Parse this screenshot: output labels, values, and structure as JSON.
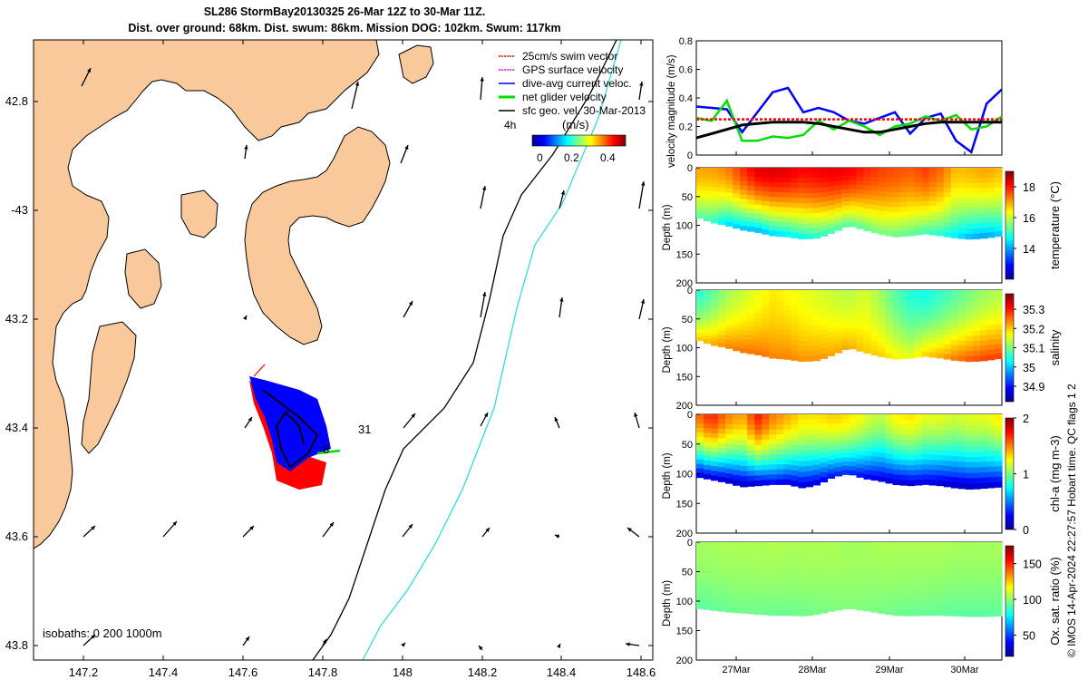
{
  "header": {
    "title_line1": "SL286 StormBay20130325 26-Mar 12Z to 30-Mar 11Z.",
    "title_line2": "Dist. over ground: 68km. Dist. swum: 86km. Mission DOG: 102km. Swum: 117km"
  },
  "legend": {
    "items": [
      {
        "label": "25cm/s swim vector",
        "color": "#ff0000"
      },
      {
        "label": "GPS surface velocity",
        "color": "#ff00ff"
      },
      {
        "label": "dive-avg current veloc.",
        "color": "#0000ff"
      },
      {
        "label": "net glider velocity",
        "color": "#00dd00"
      },
      {
        "label": "sfc geo. vel. 30-Mar-2013",
        "color": "#000000"
      }
    ],
    "colorbar_label": "(m/s)",
    "colorbar_ticks": [
      "0",
      "0.2",
      "0.4"
    ],
    "time_marker": "4h"
  },
  "map": {
    "lat_ticks": [
      "42.8",
      "-43",
      "43.2",
      "43.4",
      "43.6",
      "43.8"
    ],
    "lon_ticks": [
      "147.2",
      "147.4",
      "147.6",
      "147.8",
      "148",
      "148.2",
      "148.4",
      "148.6"
    ],
    "isobaths_label": "isobaths: 0   200  1000m",
    "track_labels": [
      "31",
      "8"
    ],
    "colors": {
      "land": "#f9c89b",
      "sea": "#ffffff",
      "isobath_200": "#000000",
      "isobath_1000": "#33dddd"
    }
  },
  "chart_data": [
    {
      "type": "line",
      "title": "",
      "ylabel": "velocity magnitude (m/s)",
      "ylim": [
        0,
        0.8
      ],
      "yticks": [
        "0",
        "0.2",
        "0.4",
        "0.6",
        "0.8"
      ],
      "x": [
        0,
        0.05,
        0.1,
        0.15,
        0.2,
        0.25,
        0.3,
        0.35,
        0.4,
        0.45,
        0.5,
        0.55,
        0.6,
        0.65,
        0.7,
        0.75,
        0.8,
        0.85,
        0.9,
        0.95,
        1.0
      ],
      "series": [
        {
          "name": "dive-avg current veloc.",
          "color": "#0000ff",
          "values": [
            0.34,
            0.33,
            0.32,
            0.16,
            0.3,
            0.44,
            0.47,
            0.3,
            0.33,
            0.3,
            0.24,
            0.22,
            0.26,
            0.3,
            0.15,
            0.26,
            0.29,
            0.1,
            0.02,
            0.36,
            0.46
          ]
        },
        {
          "name": "net glider velocity",
          "color": "#00dd00",
          "values": [
            0.26,
            0.24,
            0.38,
            0.1,
            0.1,
            0.13,
            0.12,
            0.14,
            0.24,
            0.18,
            0.24,
            0.2,
            0.14,
            0.2,
            0.22,
            0.27,
            0.24,
            0.28,
            0.18,
            0.2,
            0.27
          ]
        },
        {
          "name": "25cm/s swim vector",
          "color": "#ff0000",
          "values": [
            0.25,
            0.25,
            0.25,
            0.25,
            0.25,
            0.25,
            0.25,
            0.25,
            0.25,
            0.25,
            0.25,
            0.25,
            0.25,
            0.25,
            0.25,
            0.25,
            0.25,
            0.25,
            0.25,
            0.25,
            0.25
          ]
        },
        {
          "name": "sfc geo. vel. 30-Mar-2013",
          "color": "#000000",
          "values": [
            0.12,
            0.15,
            0.18,
            0.21,
            0.22,
            0.23,
            0.23,
            0.23,
            0.22,
            0.2,
            0.18,
            0.16,
            0.16,
            0.18,
            0.2,
            0.22,
            0.23,
            0.23,
            0.23,
            0.23,
            0.23
          ]
        }
      ]
    },
    {
      "type": "heatmap",
      "ylabel": "Depth (m)",
      "yticks": [
        "0",
        "50",
        "100",
        "150",
        "200"
      ],
      "ylim": [
        200,
        0
      ],
      "cbar_label": "temperature (°C)",
      "cbar_ticks": [
        "14",
        "16",
        "18"
      ],
      "cbar_range": [
        12,
        19
      ],
      "bottom_depth": [
        85,
        95,
        100,
        108,
        112,
        118,
        120,
        124,
        122,
        112,
        100,
        108,
        115,
        120,
        118,
        115,
        118,
        122,
        124,
        122,
        118
      ],
      "surface_values": [
        17,
        17,
        17.2,
        17.8,
        18.3,
        18.4,
        18.3,
        18.1,
        18.2,
        18.3,
        18.2,
        17.9,
        17.7,
        17.6,
        17.5,
        17.7,
        17.4,
        16.8,
        16.9,
        17.0,
        16.8
      ],
      "bottom_values": [
        15.2,
        15.0,
        14.3,
        14.1,
        14.0,
        14.2,
        14.4,
        14.6,
        14.8,
        15.0,
        15.1,
        15.2,
        15.4,
        15.3,
        15.2,
        15.0,
        14.8,
        14.4,
        14.0,
        13.9,
        14.2
      ]
    },
    {
      "type": "heatmap",
      "ylabel": "Depth (m)",
      "yticks": [
        "0",
        "50",
        "100",
        "150",
        "200"
      ],
      "ylim": [
        200,
        0
      ],
      "cbar_label": "salinity",
      "cbar_ticks": [
        "34.9",
        "35",
        "35.1",
        "35.2",
        "35.3"
      ],
      "cbar_range": [
        34.82,
        35.38
      ],
      "bottom_depth": [
        85,
        95,
        100,
        108,
        112,
        118,
        120,
        124,
        122,
        112,
        100,
        108,
        115,
        120,
        118,
        115,
        118,
        122,
        124,
        122,
        118
      ],
      "surface_values": [
        35.05,
        35.08,
        35.12,
        35.14,
        35.16,
        35.18,
        35.17,
        35.16,
        35.15,
        35.14,
        35.13,
        35.15,
        35.12,
        35.08,
        35.05,
        35.04,
        35.06,
        35.08,
        35.1,
        35.12,
        35.13
      ],
      "bottom_values": [
        35.2,
        35.22,
        35.24,
        35.25,
        35.25,
        35.24,
        35.24,
        35.23,
        35.23,
        35.22,
        35.22,
        35.2,
        35.2,
        35.18,
        35.16,
        35.2,
        35.22,
        35.25,
        35.27,
        35.28,
        35.28
      ]
    },
    {
      "type": "heatmap",
      "ylabel": "Depth (m)",
      "yticks": [
        "0",
        "50",
        "100",
        "150",
        "200"
      ],
      "ylim": [
        200,
        0
      ],
      "cbar_label": "chl-a (mg m-3)",
      "cbar_ticks": [
        "0",
        "1",
        "2"
      ],
      "cbar_range": [
        0,
        2
      ],
      "bottom_depth": [
        105,
        110,
        115,
        122,
        120,
        118,
        118,
        124,
        118,
        105,
        100,
        108,
        112,
        118,
        120,
        118,
        120,
        124,
        126,
        124,
        122
      ],
      "surface_values": [
        1.5,
        1.7,
        1.5,
        1.4,
        1.7,
        1.5,
        1.4,
        1.3,
        1.3,
        1.35,
        1.3,
        1.2,
        1.1,
        1.25,
        1.3,
        1.2,
        1.2,
        1.15,
        1.2,
        1.2,
        1.3
      ],
      "bottom_values": [
        0.1,
        0.1,
        0.08,
        0.06,
        0.1,
        0.2,
        0.15,
        0.12,
        0.15,
        0.25,
        0.3,
        0.2,
        0.15,
        0.1,
        0.12,
        0.15,
        0.1,
        0.08,
        0.08,
        0.1,
        0.12
      ]
    },
    {
      "type": "heatmap",
      "ylabel": "Depth (m)",
      "yticks": [
        "0",
        "50",
        "100",
        "150",
        "200"
      ],
      "ylim": [
        200,
        0
      ],
      "cbar_label": "Ox. sat. ratio (%)",
      "cbar_ticks": [
        "50",
        "100",
        "150"
      ],
      "cbar_range": [
        20,
        175
      ],
      "bottom_depth": [
        112,
        115,
        118,
        120,
        122,
        124,
        124,
        125,
        122,
        116,
        112,
        116,
        120,
        124,
        125,
        124,
        124,
        125,
        126,
        126,
        125
      ],
      "surface_values": [
        103,
        103,
        104,
        104,
        104,
        105,
        104,
        104,
        104,
        104,
        103,
        103,
        104,
        104,
        104,
        104,
        104,
        103,
        103,
        103,
        103
      ],
      "bottom_values": [
        92,
        93,
        94,
        95,
        95,
        94,
        94,
        95,
        96,
        97,
        98,
        97,
        96,
        95,
        94,
        94,
        93,
        92,
        92,
        92,
        93
      ]
    }
  ],
  "time_axis": {
    "ticks": [
      "27Mar",
      "28Mar",
      "29Mar",
      "30Mar"
    ]
  },
  "footer": {
    "credit": "© IMOS 14-Apr-2024 22:27:57 Hobart time. QC flags 1  2"
  }
}
